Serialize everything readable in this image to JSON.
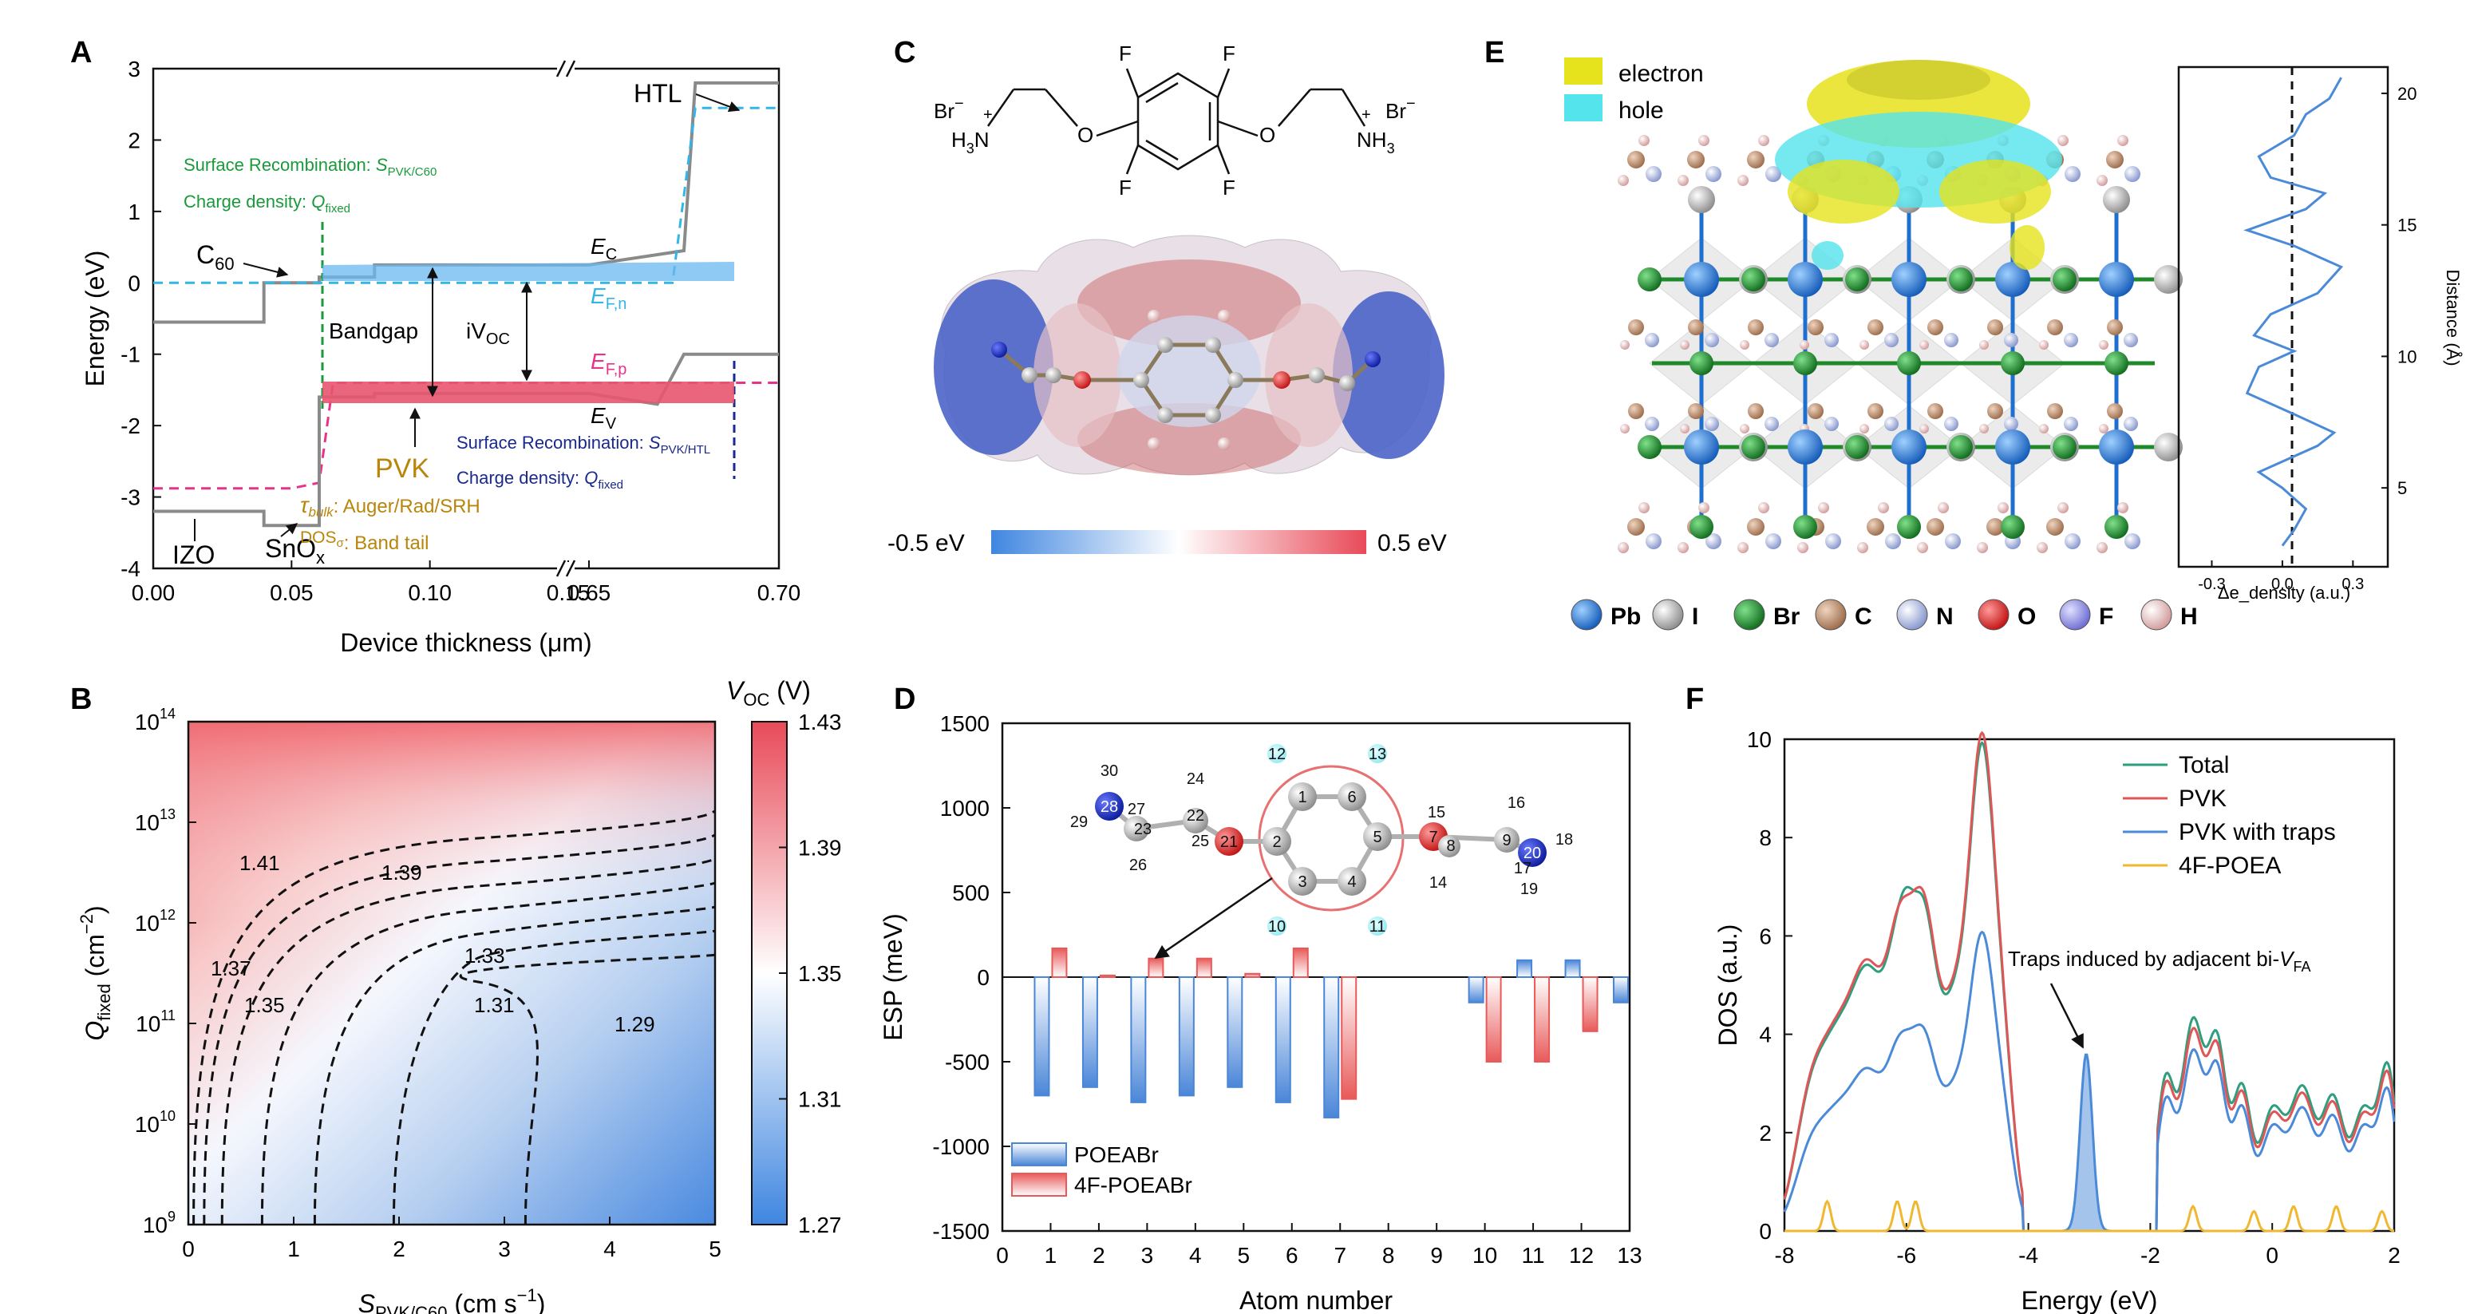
{
  "panel_letters": [
    "A",
    "B",
    "C",
    "D",
    "E",
    "F"
  ],
  "chart_data": [
    {
      "panel": "A",
      "type": "line",
      "xlabel": "Device thickness (μm)",
      "ylabel": "Energy (eV)",
      "ylim": [
        -4,
        3
      ],
      "x_ticks": [
        "0.00",
        "0.05",
        "0.10",
        "0.15",
        "0.65",
        "0.70"
      ],
      "y_ticks": [
        "-4",
        "-3",
        "-2",
        "-1",
        "0",
        "1",
        "2",
        "3"
      ],
      "axis_break": "between 0.15 and 0.65",
      "series": [
        {
          "name": "E_C",
          "color": "#8a8a8a",
          "points": [
            [
              0.0,
              -0.55
            ],
            [
              0.04,
              -0.55
            ],
            [
              0.04,
              0.0
            ],
            [
              0.06,
              0.0
            ],
            [
              0.06,
              0.08
            ],
            [
              0.08,
              0.08
            ],
            [
              0.08,
              0.25
            ],
            [
              0.15,
              0.25
            ],
            [
              0.65,
              0.25
            ],
            [
              0.675,
              0.45
            ],
            [
              0.678,
              2.8
            ],
            [
              0.7,
              2.8
            ]
          ]
        },
        {
          "name": "E_F,n",
          "color": "#33b5e5",
          "points": [
            [
              0.0,
              0.0
            ],
            [
              0.08,
              0.0
            ],
            [
              0.15,
              0.0
            ],
            [
              0.65,
              0.0
            ],
            [
              0.672,
              0.0
            ],
            [
              0.678,
              2.45
            ],
            [
              0.7,
              2.45
            ]
          ]
        },
        {
          "name": "E_F,p",
          "color": "#e8338a",
          "points": [
            [
              0.0,
              -2.88
            ],
            [
              0.05,
              -2.88
            ],
            [
              0.06,
              -2.8
            ],
            [
              0.065,
              -1.4
            ],
            [
              0.15,
              -1.4
            ],
            [
              0.65,
              -1.4
            ],
            [
              0.7,
              -1.4
            ]
          ]
        },
        {
          "name": "E_V",
          "color": "#8a8a8a",
          "points": [
            [
              0.0,
              -3.2
            ],
            [
              0.04,
              -3.2
            ],
            [
              0.04,
              -3.4
            ],
            [
              0.06,
              -3.4
            ],
            [
              0.06,
              -1.6
            ],
            [
              0.08,
              -1.6
            ],
            [
              0.08,
              -1.55
            ],
            [
              0.15,
              -1.55
            ],
            [
              0.65,
              -1.55
            ],
            [
              0.668,
              -1.7
            ],
            [
              0.675,
              -1.0
            ],
            [
              0.7,
              -1.0
            ]
          ]
        }
      ],
      "labels": {
        "htl": "HTL",
        "c60": "C",
        "c60_sub": "60",
        "izo": "IZO",
        "snox": "SnO",
        "snox_sub": "x",
        "ec": "E",
        "ec_sub": "C",
        "efn": "E",
        "efn_sub": "F,n",
        "efp": "E",
        "efp_sub": "F,p",
        "ev": "E",
        "ev_sub": "V",
        "bandgap": "Bandgap",
        "ivoc": "iV",
        "ivoc_sub": "OC",
        "pvk": "PVK",
        "surf_rec_top": "Surface Recombination: ",
        "surf_rec_top_s": "S",
        "surf_rec_top_sub": "PVK/C60",
        "charge_top": "Charge density: ",
        "charge_top_q": "Q",
        "charge_top_sub": "fixed",
        "surf_rec_bot": "Surface Recombination: ",
        "surf_rec_bot_s": "S",
        "surf_rec_bot_sub": "PVK/HTL",
        "charge_bot": "Charge density: ",
        "charge_bot_q": "Q",
        "charge_bot_sub": "fixed",
        "tau": "τ",
        "tau_sub": "bulk",
        "tau_rest": ": Auger/Rad/SRH",
        "dos": "DOS",
        "dos_sub": "σ",
        "dos_rest": ": Band tail"
      }
    },
    {
      "panel": "B",
      "type": "heatmap",
      "xlabel": "S",
      "xlabel_sub": "PVK/C60",
      "xlabel_unit": " (cm s",
      "ylabel": "Q",
      "ylabel_sub": "fixed",
      "ylabel_unit": " (cm",
      "x_range": [
        0,
        5
      ],
      "x_ticks": [
        "0",
        "1",
        "2",
        "3",
        "4",
        "5"
      ],
      "y_ticks": [
        {
          "base": "10",
          "exp": "9"
        },
        {
          "base": "10",
          "exp": "10"
        },
        {
          "base": "10",
          "exp": "11"
        },
        {
          "base": "10",
          "exp": "12"
        },
        {
          "base": "10",
          "exp": "13"
        },
        {
          "base": "10",
          "exp": "14"
        }
      ],
      "colorbar_title": "V",
      "colorbar_title_sub": "OC",
      "colorbar_unit": " (V)",
      "colorbar_range": [
        1.27,
        1.43
      ],
      "colorbar_ticks": [
        "1.43",
        "1.39",
        "1.35",
        "1.31",
        "1.27"
      ],
      "contours": [
        {
          "level": "1.41",
          "x_intercept": 0.05
        },
        {
          "level": "1.39",
          "x_intercept": 0.15
        },
        {
          "level": "1.37",
          "x_intercept": 0.32
        },
        {
          "level": "1.35",
          "x_intercept": 0.7
        },
        {
          "level": "1.33",
          "x_intercept": 1.2
        },
        {
          "level": "1.31",
          "x_intercept": 1.95
        },
        {
          "level": "1.29",
          "x_intercept": 3.2
        }
      ]
    },
    {
      "panel": "D",
      "type": "bar",
      "xlabel": "Atom number",
      "ylabel": "ESP (meV)",
      "ylim": [
        -1500,
        1500
      ],
      "x_ticks": [
        "0",
        "1",
        "2",
        "3",
        "4",
        "5",
        "6",
        "7",
        "8",
        "9",
        "10",
        "11",
        "12",
        "13"
      ],
      "y_ticks": [
        "-1500",
        "-1000",
        "-500",
        "0",
        "500",
        "1000",
        "1500"
      ],
      "series": [
        {
          "name": "POEABr",
          "color": "#4a86d8",
          "x": [
            1,
            2,
            3,
            4,
            5,
            6,
            7,
            10,
            11,
            12,
            13
          ],
          "values": [
            -700,
            -650,
            -740,
            -700,
            -650,
            -740,
            -830,
            -150,
            100,
            100,
            -150
          ]
        },
        {
          "name": "4F-POEABr",
          "color": "#e85a5a",
          "x": [
            1,
            2,
            3,
            4,
            5,
            6,
            7,
            10,
            11,
            12
          ],
          "values": [
            170,
            10,
            110,
            110,
            20,
            170,
            -720,
            -500,
            -500,
            -320
          ]
        }
      ]
    },
    {
      "panel": "F",
      "type": "line",
      "xlabel": "Energy (eV)",
      "ylabel": "DOS (a.u.)",
      "xlim": [
        -8,
        2
      ],
      "ylim": [
        0,
        10
      ],
      "x_ticks": [
        "-8",
        "-6",
        "-4",
        "-2",
        "0",
        "2"
      ],
      "y_ticks": [
        "0",
        "2",
        "4",
        "6",
        "8",
        "10"
      ],
      "annotation": "Traps induced by adjacent bi-",
      "annotation_v": "V",
      "annotation_sub": "FA",
      "series": [
        {
          "name": "Total",
          "color": "#2e9e7e"
        },
        {
          "name": "PVK",
          "color": "#e05555"
        },
        {
          "name": "PVK with traps",
          "color": "#4a8ad8"
        },
        {
          "name": "4F-POEA",
          "color": "#f0b830"
        }
      ]
    }
  ],
  "panel_c": {
    "br_left": "Br",
    "br_right": "Br",
    "minus": "−",
    "plus": "+",
    "h3n": "H",
    "h3n_sub": "3",
    "h3n_n": "N",
    "nh3": "NH",
    "nh3_sub": "3",
    "o": "O",
    "f": "F",
    "scale_min": "-0.5 eV",
    "scale_max": "0.5 eV"
  },
  "panel_d_molecule": {
    "atoms": [
      "30",
      "28",
      "27",
      "23",
      "29",
      "22",
      "24",
      "26",
      "25",
      "21",
      "1",
      "6",
      "2",
      "5",
      "3",
      "4",
      "12",
      "13",
      "10",
      "11",
      "7",
      "15",
      "8",
      "14",
      "9",
      "16",
      "17",
      "18",
      "19",
      "20"
    ]
  },
  "panel_e": {
    "legend_electron": "electron",
    "legend_hole": "hole",
    "elements": [
      "Pb",
      "I",
      "Br",
      "C",
      "N",
      "O",
      "F",
      "H"
    ],
    "element_colors": [
      "#1e6fd0",
      "#b0b0b0",
      "#1e8a2a",
      "#c8906a",
      "#a9b8e8",
      "#e02020",
      "#8a8ae8",
      "#e8b0b0"
    ],
    "profile_xlabel": "Δe_density (a.u.)",
    "profile_ylabel": "Distance (Å)",
    "profile_x_ticks": [
      "-0.3",
      "0.0",
      "0.3"
    ],
    "profile_y_ticks": [
      "5",
      "10",
      "15",
      "20"
    ]
  }
}
